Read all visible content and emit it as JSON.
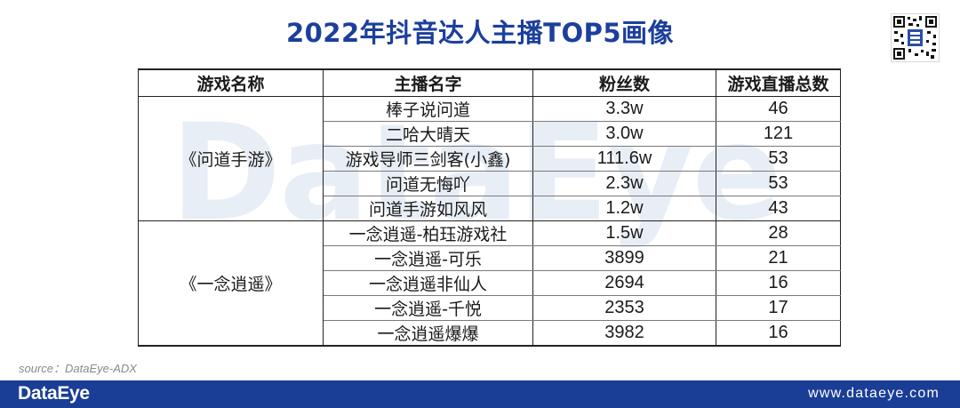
{
  "title": "2022年抖音达人主播TOP5画像",
  "watermark": "DataEye",
  "table": {
    "headers": [
      "游戏名称",
      "主播名字",
      "粉丝数",
      "游戏直播总数"
    ],
    "groups": [
      {
        "game": "《问道手游》",
        "rows": [
          {
            "streamer": "棒子说问道",
            "fans": "3.3w",
            "streams": "46"
          },
          {
            "streamer": "二哈大晴天",
            "fans": "3.0w",
            "streams": "121"
          },
          {
            "streamer": "游戏导师三剑客(小鑫)",
            "fans": "111.6w",
            "streams": "53"
          },
          {
            "streamer": "问道无悔吖",
            "fans": "2.3w",
            "streams": "53"
          },
          {
            "streamer": "问道手游如风风",
            "fans": "1.2w",
            "streams": "43"
          }
        ]
      },
      {
        "game": "《一念逍遥》",
        "rows": [
          {
            "streamer": "一念逍遥-柏珏游戏社",
            "fans": "1.5w",
            "streams": "28"
          },
          {
            "streamer": "一念逍遥-可乐",
            "fans": "3899",
            "streams": "21"
          },
          {
            "streamer": "一念逍遥非仙人",
            "fans": "2694",
            "streams": "16"
          },
          {
            "streamer": "一念逍遥-千悦",
            "fans": "2353",
            "streams": "17"
          },
          {
            "streamer": "一念逍遥爆爆",
            "fans": "3982",
            "streams": "16"
          }
        ]
      }
    ]
  },
  "source": "source：DataEye-ADX",
  "footer": {
    "logo": "DataEye",
    "url": "www.dataeye.com"
  },
  "colors": {
    "title": "#1b3f9c",
    "footer_bg": "#1a3d96",
    "watermark": "#e8eef6"
  },
  "icons": {
    "qr": "qr-code-icon"
  }
}
